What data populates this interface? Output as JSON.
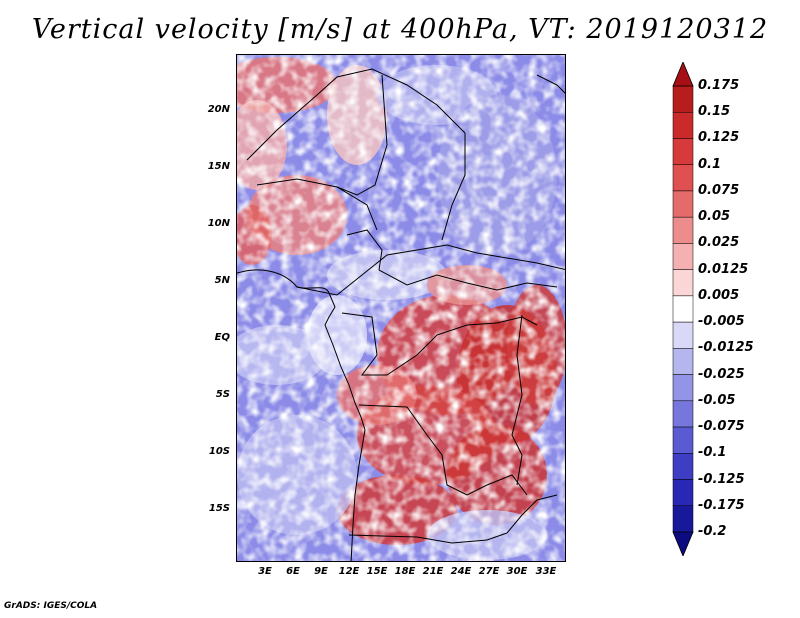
{
  "title": "Vertical velocity [m/s] at 400hPa, VT: 2019120312",
  "map": {
    "lat_labels": [
      "20N",
      "15N",
      "10N",
      "5N",
      "EQ",
      "5S",
      "10S",
      "15S"
    ],
    "lon_labels": [
      "3E",
      "6E",
      "9E",
      "12E",
      "15E",
      "18E",
      "21E",
      "24E",
      "27E",
      "30E",
      "33E"
    ]
  },
  "colorbar": {
    "levels": [
      "0.175",
      "0.15",
      "0.125",
      "0.1",
      "0.075",
      "0.05",
      "0.025",
      "0.0125",
      "0.005",
      "-0.005",
      "-0.0125",
      "-0.025",
      "-0.05",
      "-0.075",
      "-0.1",
      "-0.125",
      "-0.175",
      "-0.2"
    ],
    "colors": [
      "#a50f15",
      "#b81d1d",
      "#cb2a2a",
      "#d73a3a",
      "#e05050",
      "#e56b6b",
      "#ed8c8c",
      "#f5b1b1",
      "#fad6d6",
      "#ffffff",
      "#d9d9f7",
      "#b6b6ef",
      "#9494e6",
      "#7676dc",
      "#5a5ad2",
      "#3e3ec5",
      "#2828b4",
      "#18189b",
      "#0c0c80"
    ]
  },
  "footer": "GrADS: IGES/COLA"
}
